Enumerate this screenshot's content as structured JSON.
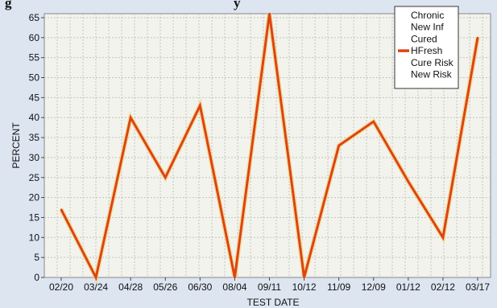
{
  "chart_data": {
    "type": "line",
    "title_fragment": "g",
    "title_fragment_2": "y",
    "xlabel": "TEST DATE",
    "ylabel": "PERCENT",
    "ylim": [
      0,
      66
    ],
    "yticks": [
      0,
      5,
      10,
      15,
      20,
      25,
      30,
      35,
      40,
      45,
      50,
      55,
      60,
      65
    ],
    "grid": true,
    "legend_position": "top-right",
    "categories": [
      "02/20",
      "03/24",
      "04/28",
      "05/26",
      "06/30",
      "08/04",
      "09/11",
      "10/12",
      "11/09",
      "12/09",
      "01/12",
      "02/12",
      "03/17"
    ],
    "legend": [
      {
        "name": "Chronic",
        "shown": false
      },
      {
        "name": "New Inf",
        "shown": false
      },
      {
        "name": "Cured",
        "shown": false
      },
      {
        "name": "HFresh",
        "shown": true
      },
      {
        "name": "Cure Risk",
        "shown": false
      },
      {
        "name": "New Risk",
        "shown": false
      }
    ],
    "series": [
      {
        "name": "HFresh",
        "color": "#dd4411",
        "values": [
          17,
          0,
          40,
          25,
          43,
          0,
          66,
          0,
          33,
          39,
          24,
          10,
          60
        ]
      }
    ]
  }
}
